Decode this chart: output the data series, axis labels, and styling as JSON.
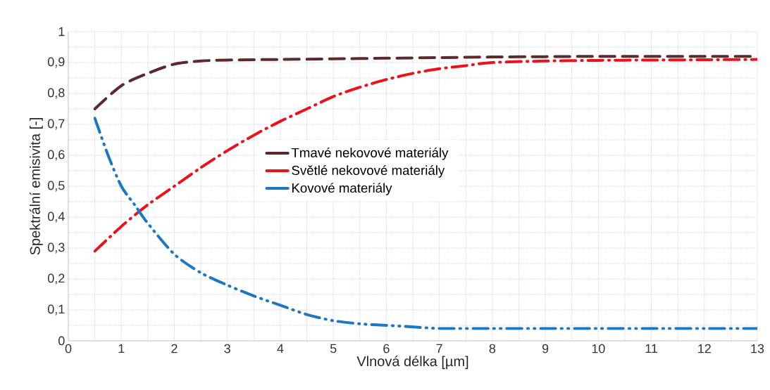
{
  "chart_data": {
    "type": "line",
    "xlabel": "Vlnová délka [µm]",
    "ylabel": "Spektrální emisivita [-]",
    "xlim": [
      0,
      13
    ],
    "ylim": [
      0,
      1
    ],
    "xticks": [
      0,
      {
        "value": 0.5,
        "label": null
      },
      1,
      {
        "value": 1.5,
        "label": null
      },
      2,
      {
        "value": 2.5,
        "label": null
      },
      3,
      {
        "value": 3.5,
        "label": null
      },
      4,
      {
        "value": 4.5,
        "label": null
      },
      5,
      {
        "value": 5.5,
        "label": null
      },
      6,
      {
        "value": 6.5,
        "label": null
      },
      7,
      {
        "value": 7.5,
        "label": null
      },
      8,
      {
        "value": 8.5,
        "label": null
      },
      9,
      {
        "value": 9.5,
        "label": null
      },
      10,
      {
        "value": 10.5,
        "label": null
      },
      11,
      {
        "value": 11.5,
        "label": null
      },
      12,
      {
        "value": 12.5,
        "label": null
      },
      13
    ],
    "yticks": [
      0,
      {
        "value": 0.05,
        "label": null
      },
      {
        "value": 0.1,
        "label": "0,1"
      },
      {
        "value": 0.15,
        "label": null
      },
      {
        "value": 0.2,
        "label": "0,2"
      },
      {
        "value": 0.25,
        "label": null
      },
      {
        "value": 0.3,
        "label": "0,3"
      },
      {
        "value": 0.35,
        "label": null
      },
      {
        "value": 0.4,
        "label": "0,4"
      },
      {
        "value": 0.45,
        "label": null
      },
      {
        "value": 0.5,
        "label": "0,5"
      },
      {
        "value": 0.55,
        "label": null
      },
      {
        "value": 0.6,
        "label": "0,6"
      },
      {
        "value": 0.65,
        "label": null
      },
      {
        "value": 0.7,
        "label": "0,7"
      },
      {
        "value": 0.75,
        "label": null
      },
      {
        "value": 0.8,
        "label": "0,8"
      },
      {
        "value": 0.85,
        "label": null
      },
      {
        "value": 0.9,
        "label": "0,9"
      },
      {
        "value": 0.95,
        "label": null
      },
      1
    ],
    "grid": true,
    "legend": "center",
    "marker": "none",
    "series": [
      {
        "name": "Tmavé nekovové materiály",
        "color": "#5c2a2a",
        "line_style": "dashed",
        "x": [
          0.5,
          1,
          1.5,
          2,
          2.5,
          3,
          4,
          5,
          6,
          7,
          8,
          9,
          10,
          11,
          12,
          13
        ],
        "values": [
          0.75,
          0.825,
          0.865,
          0.895,
          0.905,
          0.908,
          0.91,
          0.912,
          0.914,
          0.916,
          0.918,
          0.919,
          0.92,
          0.92,
          0.92,
          0.92
        ]
      },
      {
        "name": "Světlé nekovové materiály",
        "color": "#e8141b",
        "line_style": "dashdot",
        "x": [
          0.5,
          1,
          1.5,
          2,
          2.5,
          3,
          3.5,
          4,
          4.5,
          5,
          5.5,
          6,
          6.5,
          7,
          7.5,
          8,
          9,
          10,
          11,
          12,
          13
        ],
        "values": [
          0.29,
          0.37,
          0.44,
          0.5,
          0.56,
          0.615,
          0.665,
          0.71,
          0.75,
          0.79,
          0.82,
          0.845,
          0.865,
          0.88,
          0.89,
          0.9,
          0.905,
          0.907,
          0.908,
          0.909,
          0.91
        ]
      },
      {
        "name": "Kovové materiály",
        "color": "#1f77c0",
        "line_style": "dashdotdot",
        "x": [
          0.5,
          0.75,
          1,
          1.25,
          1.5,
          2,
          2.5,
          3,
          3.5,
          4,
          4.5,
          5,
          5.5,
          6,
          6.5,
          7,
          8,
          9,
          10,
          11,
          12,
          13
        ],
        "values": [
          0.72,
          0.6,
          0.5,
          0.44,
          0.38,
          0.28,
          0.22,
          0.18,
          0.145,
          0.115,
          0.085,
          0.065,
          0.055,
          0.05,
          0.045,
          0.04,
          0.04,
          0.04,
          0.04,
          0.04,
          0.04,
          0.04
        ]
      }
    ]
  }
}
